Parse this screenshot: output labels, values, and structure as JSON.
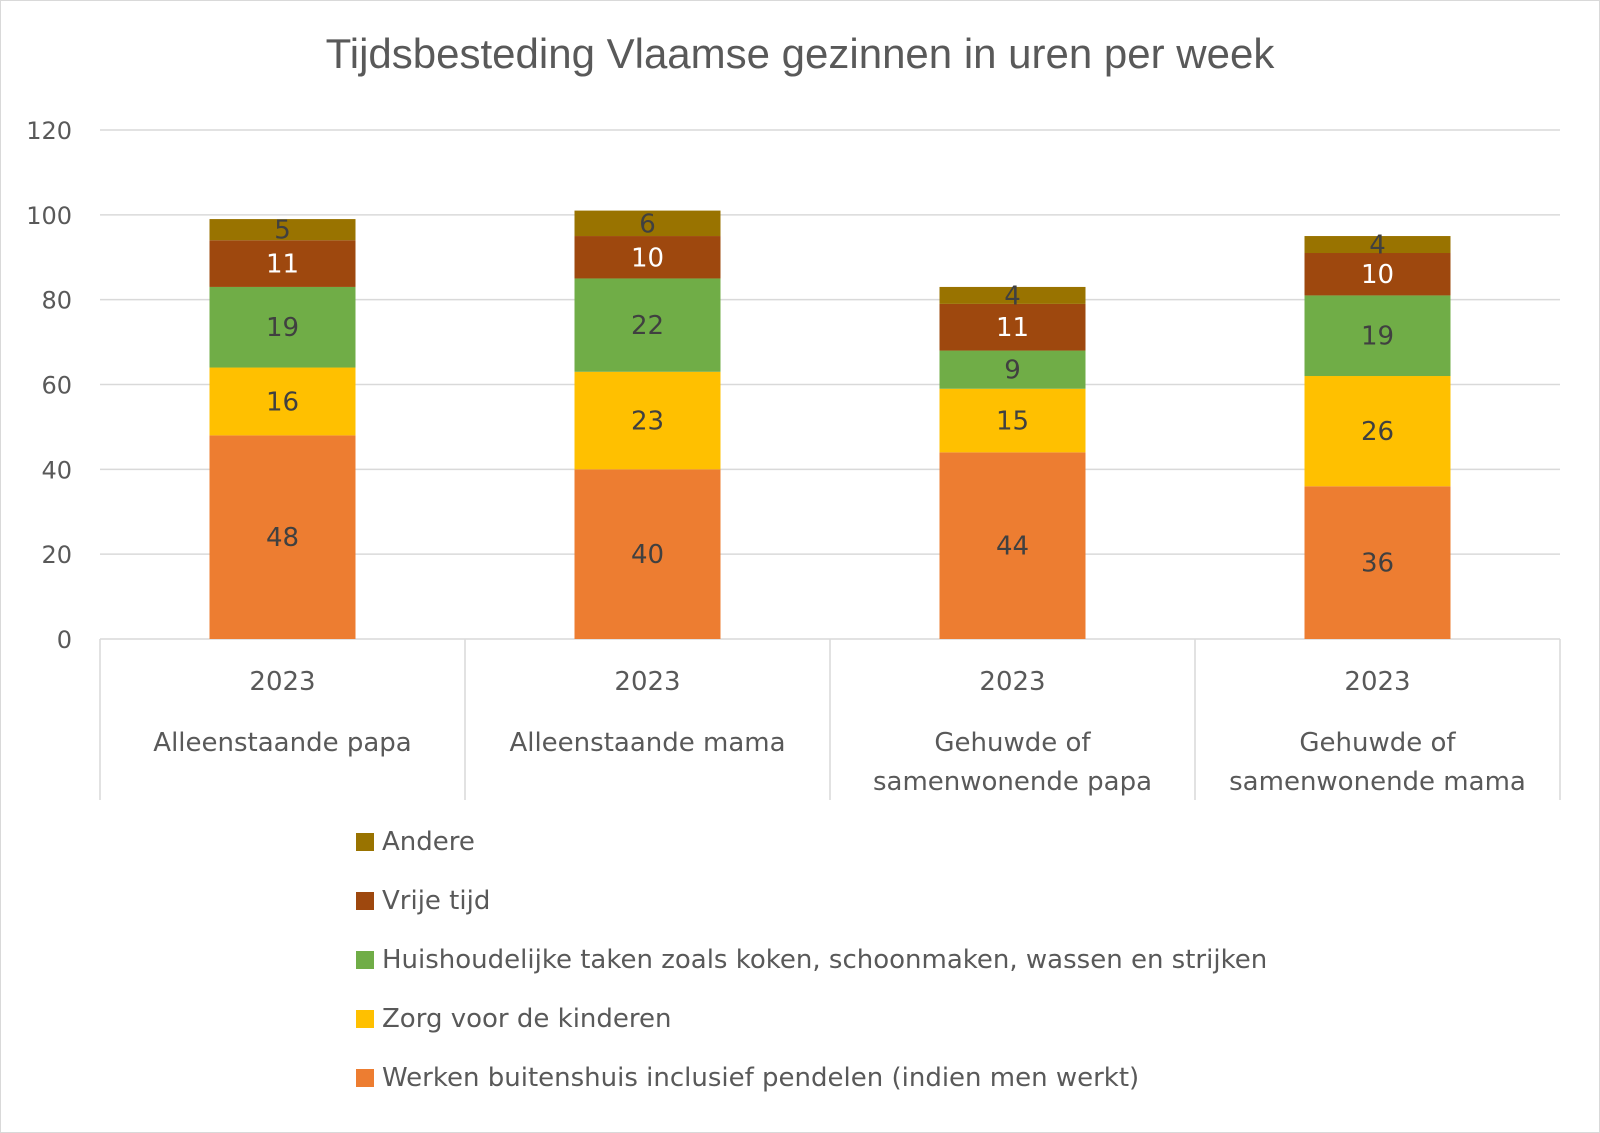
{
  "chart_data": {
    "type": "bar",
    "stacked": true,
    "title": "Tijdsbesteding Vlaamse gezinnen in uren per week",
    "xlabel": "",
    "ylabel": "",
    "ylim": [
      0,
      120
    ],
    "yticks": [
      0,
      20,
      40,
      60,
      80,
      100,
      120
    ],
    "grid": true,
    "legend_position": "bottom",
    "categories": [
      {
        "year": "2023",
        "group": [
          "Alleenstaande papa"
        ]
      },
      {
        "year": "2023",
        "group": [
          "Alleenstaande mama"
        ]
      },
      {
        "year": "2023",
        "group": [
          "Gehuwde of",
          "samenwonende papa"
        ]
      },
      {
        "year": "2023",
        "group": [
          "Gehuwde of",
          "samenwonende mama"
        ]
      }
    ],
    "series": [
      {
        "name": "Werken buitenshuis inclusief pendelen (indien men werkt)",
        "color": "#ed7d31",
        "label_color": "#404040",
        "values": [
          48,
          40,
          44,
          36
        ]
      },
      {
        "name": "Zorg voor de kinderen",
        "color": "#ffc000",
        "label_color": "#404040",
        "values": [
          16,
          23,
          15,
          26
        ]
      },
      {
        "name": "Huishoudelijke taken zoals koken, schoonmaken, wassen en strijken",
        "color": "#70ad47",
        "label_color": "#404040",
        "values": [
          19,
          22,
          9,
          19
        ]
      },
      {
        "name": "Vrije tijd",
        "color": "#9e480e",
        "label_color": "#ffffff",
        "values": [
          11,
          10,
          11,
          10
        ]
      },
      {
        "name": "Andere",
        "color": "#997300",
        "label_color": "#404040",
        "values": [
          5,
          6,
          4,
          4
        ]
      }
    ]
  }
}
